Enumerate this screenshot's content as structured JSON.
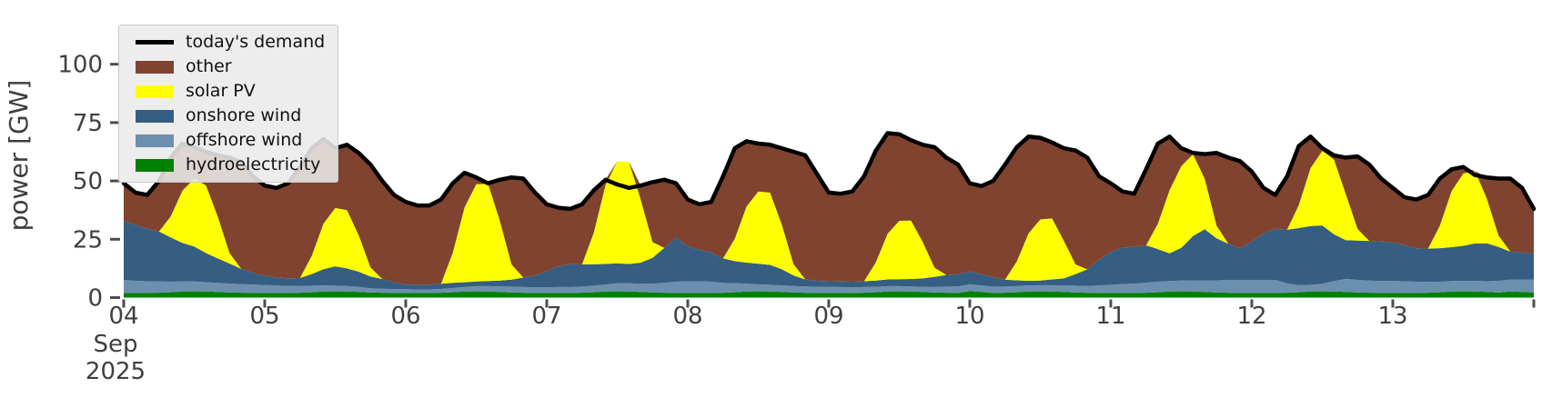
{
  "chart_data": {
    "type": "area",
    "title": "",
    "description": "Stacked area chart of electric power by source with demand line, Sep 4-14 2025, 2-hour sampling",
    "y_axis": {
      "label": "power [GW]",
      "ticks": [
        0,
        25,
        50,
        75,
        100
      ],
      "lim": [
        0,
        121
      ]
    },
    "x_axis": {
      "tick_labels": [
        "04",
        "05",
        "06",
        "07",
        "08",
        "09",
        "10",
        "11",
        "12",
        "13"
      ],
      "month_label": "Sep",
      "year_label": "2025",
      "days": 10,
      "points_per_day": 12,
      "start": "2025-09-04 00:00",
      "end": "2025-09-14 00:00"
    },
    "legend": [
      "today's demand",
      "other",
      "solar PV",
      "onshore wind",
      "offshore wind",
      "hydroelectricity"
    ],
    "legend_position": "upper left",
    "colors": {
      "today's demand": "#000000",
      "other": "#80432f",
      "solar PV": "#ffff00",
      "onshore wind": "#355e82",
      "offshore wind": "#6d8fae",
      "hydroelectricity": "#008000",
      "axis_text": "#3f3f3f",
      "tick_mark": "#4d4d4d"
    },
    "stack_order": [
      "hydroelectricity",
      "offshore wind",
      "onshore wind",
      "solar PV",
      "other"
    ],
    "other_rule": "other = max(0, demand - (hydro + offshore + onshore + solar))",
    "series": {
      "demand": [
        49,
        45,
        44,
        50,
        60,
        66,
        64.5,
        62.5,
        61,
        60,
        58,
        52,
        48,
        47,
        49,
        56,
        64,
        68,
        64,
        65.5,
        62,
        57,
        50,
        44,
        41,
        39.5,
        39.5,
        42,
        49,
        53.5,
        51.5,
        49,
        50.5,
        51.5,
        51,
        45,
        40,
        38.5,
        38,
        40,
        46,
        50.5,
        48.5,
        47,
        48,
        49.5,
        50.5,
        49,
        42,
        40,
        41,
        52,
        64,
        67,
        66,
        65.5,
        64,
        62.5,
        61,
        53,
        45,
        44.5,
        45.5,
        52,
        63,
        70.5,
        70,
        67.5,
        65.5,
        64.5,
        60,
        57,
        49,
        47.8,
        50,
        57,
        64.5,
        69,
        68.5,
        66.5,
        64,
        63,
        60,
        52,
        49,
        45.5,
        44.5,
        55,
        66,
        69,
        64,
        62,
        61.5,
        62,
        60,
        58.5,
        54,
        47,
        44,
        52,
        65,
        69,
        64,
        61,
        60,
        60.5,
        57,
        51,
        47,
        43,
        42,
        44,
        51,
        55,
        56,
        52.5,
        51.5,
        51,
        51,
        47,
        38
      ],
      "solar": [
        0,
        0,
        0,
        0,
        9,
        22.5,
        29,
        29,
        18,
        4.5,
        0,
        0,
        0,
        0,
        0,
        0,
        7.8,
        19.5,
        25,
        25,
        15.6,
        3.9,
        0,
        0,
        0,
        0,
        0,
        0,
        12.9,
        32,
        41.7,
        41.7,
        25.8,
        6.5,
        0,
        0,
        0,
        0,
        0,
        0,
        13.5,
        33.8,
        43.7,
        43.7,
        27,
        6.8,
        0,
        0,
        0,
        0,
        0,
        0,
        9.6,
        24,
        31,
        31,
        19.2,
        4.8,
        0,
        0,
        0,
        0,
        0,
        0,
        7.8,
        19.5,
        25,
        25,
        15.6,
        3.9,
        0,
        0,
        0,
        0,
        0,
        0,
        8.1,
        20.3,
        26.2,
        26.2,
        16.2,
        4.1,
        0,
        0,
        0,
        0,
        0,
        0,
        10.8,
        27,
        35,
        35,
        21.6,
        5.4,
        0,
        0,
        0,
        0,
        0,
        0,
        9.9,
        24.8,
        32,
        32,
        19.8,
        5,
        0,
        0,
        0,
        0,
        0,
        0,
        9.6,
        24,
        31,
        31,
        19.2,
        4.8,
        0,
        0,
        0
      ],
      "onshore": [
        25.3,
        24,
        22.5,
        21.4,
        19,
        16.5,
        15,
        12.5,
        10.5,
        8.6,
        6.5,
        5,
        4,
        3.4,
        3.2,
        3.5,
        5,
        7,
        8.3,
        7.5,
        6.5,
        5,
        4.2,
        3,
        2,
        2,
        2,
        2.2,
        2.2,
        2,
        2,
        2.2,
        2.5,
        3,
        4,
        5,
        7,
        9,
        9.8,
        9.5,
        9.2,
        8.8,
        8.5,
        8.3,
        9,
        11,
        15,
        19,
        15,
        13.5,
        12.5,
        10.5,
        9.5,
        9,
        8.8,
        8.5,
        7,
        4.5,
        3,
        2.6,
        2.4,
        2.4,
        2.4,
        2.5,
        2.7,
        2.9,
        3,
        3.2,
        3.6,
        4.4,
        5,
        5.3,
        5.5,
        4.8,
        4,
        3,
        2.5,
        2,
        2,
        2.5,
        3,
        5,
        7.1,
        11,
        14,
        15.6,
        15.8,
        16,
        14,
        11.9,
        14,
        19,
        21.9,
        18,
        15.5,
        13.5,
        16.4,
        20,
        21.9,
        23,
        24.5,
        25.2,
        25,
        20,
        16.6,
        16.8,
        17,
        17,
        16.5,
        15.5,
        14.3,
        14.3,
        14.4,
        14.5,
        15,
        16,
        16.3,
        14.5,
        12,
        11.5,
        11
      ],
      "offshore": [
        5.6,
        5.2,
        5,
        4.8,
        4.5,
        4.3,
        4.2,
        4,
        3.9,
        3.8,
        3.7,
        3.6,
        3.4,
        3.2,
        3,
        2.8,
        2.8,
        2.6,
        2.4,
        2.4,
        2.2,
        1.8,
        1.7,
        1.6,
        1.6,
        1.5,
        1.5,
        1.6,
        1.8,
        2,
        2.2,
        2.3,
        2.4,
        2.5,
        2.5,
        2.4,
        2.4,
        2.5,
        2.5,
        2.6,
        2.8,
        3,
        3.5,
        3.5,
        3.6,
        3.8,
        4.2,
        4.8,
        5,
        5,
        4.8,
        4.2,
        3.8,
        3.4,
        3,
        2.9,
        2.8,
        2.8,
        2.7,
        2.6,
        2.6,
        2.5,
        2.4,
        2.4,
        2.3,
        2.3,
        2.2,
        2.2,
        2.2,
        2.3,
        2.6,
        2.8,
        2.9,
        2.8,
        2.7,
        2.6,
        2.6,
        2.6,
        2.6,
        2.7,
        2.8,
        2.9,
        2.9,
        3.2,
        3.5,
        3.8,
        4,
        4.3,
        4.5,
        4.5,
        4.6,
        4.8,
        5,
        5.2,
        5.5,
        5.6,
        5.6,
        5.6,
        5.6,
        4,
        3,
        2.9,
        3.2,
        4.5,
        5.6,
        5.4,
        5.2,
        5.1,
        5.1,
        5,
        4.8,
        4.6,
        4.5,
        4.5,
        4.5,
        4.6,
        4.6,
        5,
        5.1,
        5.4,
        5.6
      ],
      "hydro": [
        2,
        2,
        2,
        2.1,
        2.3,
        2.6,
        2.7,
        2.6,
        2.4,
        2.2,
        2.1,
        2,
        2,
        2,
        2,
        2.1,
        2.3,
        2.6,
        2.7,
        2.6,
        2.4,
        2.2,
        2.1,
        2,
        2,
        2,
        2,
        2.1,
        2.3,
        2.6,
        2.7,
        2.6,
        2.4,
        2.2,
        2.1,
        2,
        2,
        2,
        2,
        2.1,
        2.3,
        2.6,
        2.7,
        2.6,
        2.4,
        2.2,
        2.1,
        2,
        2,
        2,
        2,
        2.1,
        2.3,
        2.6,
        2.7,
        2.6,
        2.4,
        2.2,
        2.1,
        2,
        2,
        2,
        2,
        2.1,
        2.3,
        2.6,
        2.7,
        2.6,
        2.4,
        2.2,
        2.1,
        2,
        2.8,
        2.4,
        2,
        2.1,
        2.3,
        2.6,
        2.7,
        2.6,
        2.4,
        2.2,
        2.1,
        2,
        2,
        2,
        2,
        2.1,
        2.3,
        2.6,
        2.7,
        2.6,
        2.4,
        2.2,
        2.1,
        2,
        2,
        2,
        2,
        2.1,
        2.3,
        2.6,
        2.7,
        2.6,
        2.4,
        2.2,
        2.1,
        2,
        2,
        2,
        2,
        2.1,
        2.3,
        2.6,
        2.7,
        2.6,
        2.4,
        2.2,
        2.6,
        2.4,
        2.2
      ]
    }
  }
}
